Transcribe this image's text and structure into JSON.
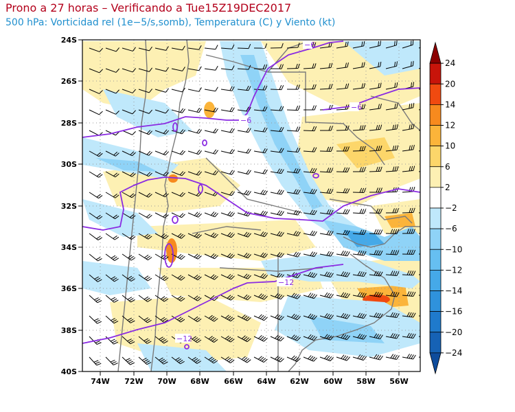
{
  "header": {
    "title": "Prono a 27 horas – Verificando a Tue15Z19DEC2017",
    "subtitle": "500 hPa: Vorticidad rel (1e−5/s,somb), Temperatura (C) y Viento (kt)"
  },
  "map": {
    "lat_labels": [
      "24S",
      "26S",
      "28S",
      "30S",
      "32S",
      "34S",
      "36S",
      "38S",
      "40S"
    ],
    "lon_labels": [
      "74W",
      "72W",
      "70W",
      "68W",
      "66W",
      "64W",
      "62W",
      "60W",
      "58W",
      "56W"
    ],
    "lat_range": [
      -40,
      -24
    ],
    "lon_range": [
      -75,
      -55
    ],
    "grid": true,
    "temperature_contour_color": "#8a2be2",
    "temperature_contours": [
      {
        "label": "−6"
      },
      {
        "label": "−6"
      },
      {
        "label": "−6"
      },
      {
        "label": "−12"
      },
      {
        "label": "−12"
      }
    ]
  },
  "colorbar": {
    "labels": [
      "24",
      "20",
      "14",
      "12",
      "10",
      "6",
      "2",
      "−2",
      "−6",
      "−10",
      "−12",
      "−14",
      "−16",
      "−20",
      "−24"
    ],
    "colors": [
      "#8b0000",
      "#c8140a",
      "#f04a10",
      "#f78a1e",
      "#fbb43a",
      "#fcd66a",
      "#fdf0b3",
      "#ffffff",
      "#bfe8fb",
      "#8fd3f7",
      "#66bff1",
      "#45a9e8",
      "#2f92dc",
      "#1f7acc",
      "#1662b5",
      "#0e4c9c"
    ]
  }
}
